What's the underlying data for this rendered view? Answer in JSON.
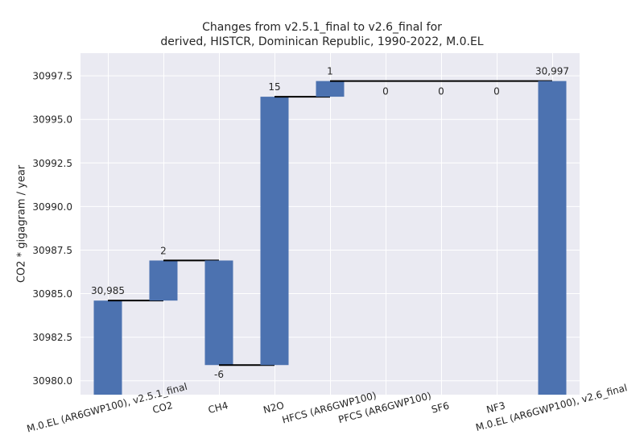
{
  "chart_data": {
    "type": "waterfall",
    "title_lines": [
      "Changes from v2.5.1_final to v2.6_final for",
      "derived, HISTCR, Dominican Republic, 1990-2022, M.0.EL"
    ],
    "ylabel": "CO2 * gigagram / year",
    "ylim": [
      30979.2,
      30998.8
    ],
    "yticks": [
      "30980.0",
      "30982.5",
      "30985.0",
      "30987.5",
      "30990.0",
      "30992.5",
      "30995.0",
      "30997.5"
    ],
    "categories": [
      "M.0.EL (AR6GWP100), v2.5.1_final",
      "CO2",
      "CH4",
      "N2O",
      "HFCS (AR6GWP100)",
      "PFCS (AR6GWP100)",
      "SF6",
      "NF3",
      "M.0.EL (AR6GWP100), v2.6_final"
    ],
    "steps": [
      {
        "kind": "total",
        "value": 30984.6,
        "label": "30,985"
      },
      {
        "kind": "delta",
        "from": 30984.6,
        "to": 30986.9,
        "label": "2"
      },
      {
        "kind": "delta",
        "from": 30986.9,
        "to": 30980.9,
        "label": "-6"
      },
      {
        "kind": "delta",
        "from": 30980.9,
        "to": 30996.3,
        "label": "15"
      },
      {
        "kind": "delta",
        "from": 30996.3,
        "to": 30997.2,
        "label": "1"
      },
      {
        "kind": "delta",
        "from": 30997.2,
        "to": 30997.2,
        "label": "0"
      },
      {
        "kind": "delta",
        "from": 30997.2,
        "to": 30997.2,
        "label": "0"
      },
      {
        "kind": "delta",
        "from": 30997.2,
        "to": 30997.2,
        "label": "0"
      },
      {
        "kind": "total",
        "value": 30997.2,
        "label": "30,997"
      }
    ],
    "bar_color": "#4c72b0",
    "plot_background": "#eaeaf2",
    "grid": true
  }
}
